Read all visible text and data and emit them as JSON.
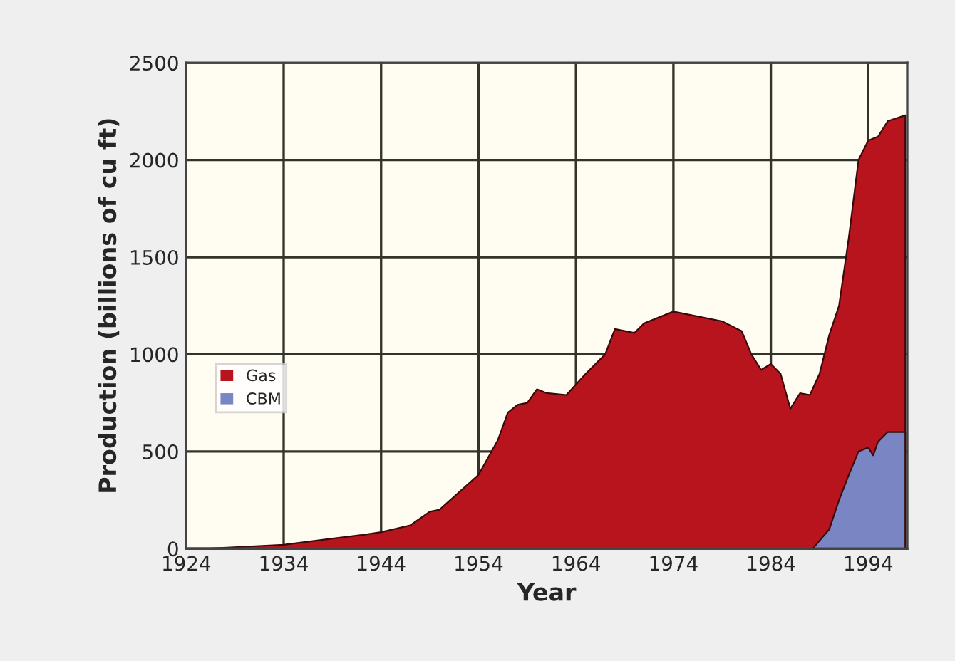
{
  "chart_data": {
    "type": "area",
    "xlabel": "Year",
    "ylabel": "Production (billions of cu ft)",
    "xlim": [
      1924,
      1998
    ],
    "ylim": [
      0,
      2500
    ],
    "xticks": [
      1924,
      1934,
      1944,
      1954,
      1964,
      1974,
      1984,
      1994
    ],
    "yticks": [
      0,
      500,
      1000,
      1500,
      2000,
      2500
    ],
    "grid": true,
    "legend": "left",
    "series": [
      {
        "name": "Gas",
        "color": "#b8141e",
        "x": [
          1926,
          1930,
          1934,
          1938,
          1942,
          1944,
          1947,
          1949,
          1950,
          1952,
          1954,
          1955,
          1956,
          1957,
          1958,
          1959,
          1960,
          1961,
          1963,
          1965,
          1967,
          1968,
          1970,
          1971,
          1974,
          1976,
          1979,
          1981,
          1982,
          1983,
          1984,
          1985,
          1986,
          1987,
          1988,
          1989,
          1990,
          1991,
          1992,
          1993,
          1994,
          1995,
          1996,
          1997.8
        ],
        "values": [
          0,
          10,
          20,
          45,
          70,
          85,
          120,
          190,
          200,
          290,
          380,
          470,
          560,
          700,
          740,
          750,
          820,
          800,
          790,
          900,
          1000,
          1130,
          1110,
          1160,
          1220,
          1200,
          1170,
          1120,
          1000,
          920,
          950,
          900,
          720,
          800,
          790,
          900,
          1100,
          1250,
          1600,
          2000,
          2100,
          2120,
          2200,
          2230
        ]
      },
      {
        "name": "CBM",
        "color": "#7a86c4",
        "x": [
          1988.3,
          1990,
          1991,
          1992,
          1993,
          1994,
          1994.5,
          1995,
          1996,
          1997.8
        ],
        "values": [
          0,
          100,
          250,
          380,
          500,
          520,
          480,
          550,
          600,
          600
        ]
      }
    ]
  }
}
